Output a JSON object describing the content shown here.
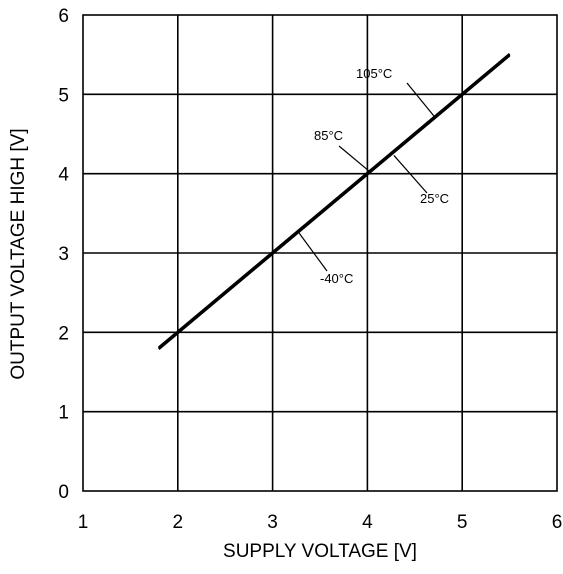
{
  "chart_data": {
    "type": "line",
    "xlabel": "SUPPLY VOLTAGE [V]",
    "ylabel": "OUTPUT VOLTAGE HIGH [V]",
    "xlim": [
      1,
      6
    ],
    "ylim": [
      0,
      6
    ],
    "x_ticks": [
      "1",
      "2",
      "3",
      "4",
      "5",
      "6"
    ],
    "y_ticks": [
      "0",
      "1",
      "2",
      "3",
      "4",
      "5",
      "6"
    ],
    "grid": true,
    "series": [
      {
        "name": "105°C",
        "x": [
          1.8,
          5.5
        ],
        "y": [
          1.8,
          5.5
        ]
      },
      {
        "name": "85°C",
        "x": [
          1.8,
          5.5
        ],
        "y": [
          1.8,
          5.5
        ]
      },
      {
        "name": "25°C",
        "x": [
          1.8,
          5.5
        ],
        "y": [
          1.8,
          5.5
        ]
      },
      {
        "name": "-40°C",
        "x": [
          1.8,
          5.5
        ],
        "y": [
          1.8,
          5.5
        ]
      }
    ],
    "annotations": [
      {
        "text": "105°C",
        "point": [
          4.72,
          4.7
        ]
      },
      {
        "text": "85°C",
        "point": [
          4.03,
          4.02
        ]
      },
      {
        "text": "25°C",
        "point": [
          4.28,
          4.23
        ]
      },
      {
        "text": "-40°C",
        "point": [
          3.28,
          3.25
        ]
      }
    ]
  }
}
